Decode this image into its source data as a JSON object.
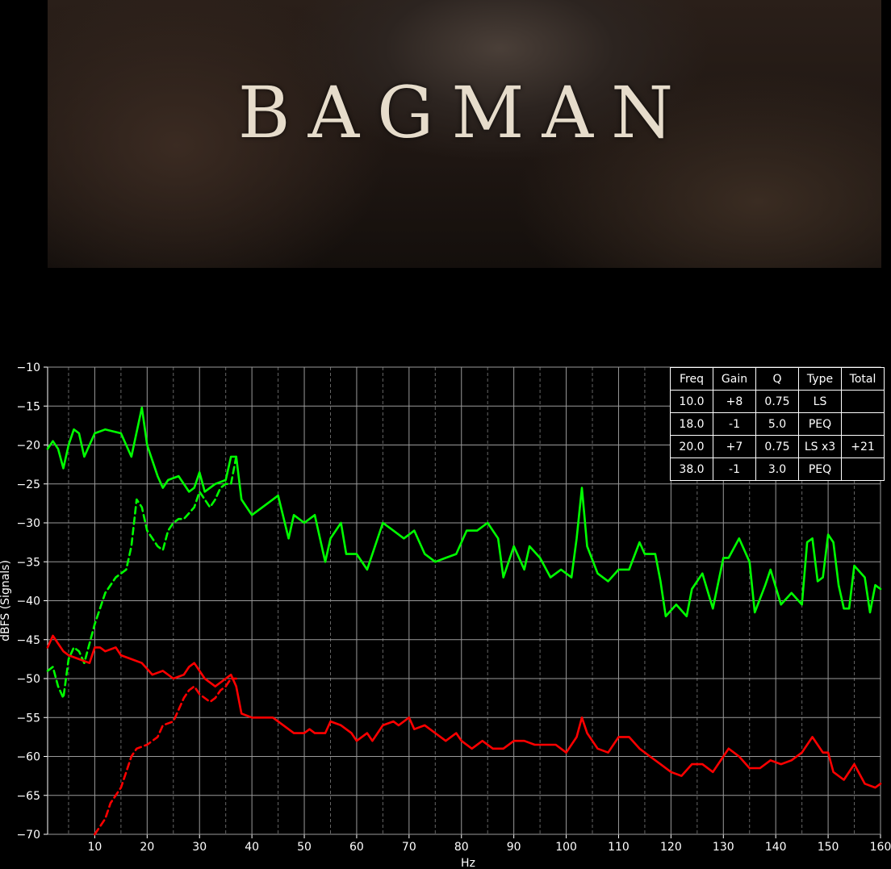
{
  "poster": {
    "title": "BAGMAN"
  },
  "table": {
    "headers": [
      "Freq",
      "Gain",
      "Q",
      "Type",
      "Total"
    ],
    "rows": [
      [
        "10.0",
        "+8",
        "0.75",
        "LS",
        ""
      ],
      [
        "18.0",
        "-1",
        "5.0",
        "PEQ",
        ""
      ],
      [
        "20.0",
        "+7",
        "0.75",
        "LS x3",
        "+21"
      ],
      [
        "38.0",
        "-1",
        "3.0",
        "PEQ",
        ""
      ]
    ]
  },
  "chart_data": {
    "type": "line",
    "xlabel": "Hz",
    "ylabel": "dBFS (Signals)",
    "xlim": [
      1,
      160
    ],
    "ylim": [
      -70,
      -10
    ],
    "xticks": [
      10,
      20,
      30,
      40,
      50,
      60,
      70,
      80,
      90,
      100,
      110,
      120,
      130,
      140,
      150,
      160
    ],
    "yticks": [
      -10,
      -15,
      -20,
      -25,
      -30,
      -35,
      -40,
      -45,
      -50,
      -55,
      -60,
      -65,
      -70
    ],
    "grid": true,
    "series": [
      {
        "color": "#00ff00",
        "style": "solid",
        "points": [
          [
            1,
            -20.5
          ],
          [
            2,
            -19.5
          ],
          [
            3,
            -20.5
          ],
          [
            4,
            -23
          ],
          [
            5,
            -20
          ],
          [
            6,
            -18
          ],
          [
            7,
            -18.5
          ],
          [
            8,
            -21.5
          ],
          [
            9,
            -20
          ],
          [
            10,
            -18.5
          ],
          [
            12,
            -18
          ],
          [
            15,
            -18.5
          ],
          [
            17,
            -21.5
          ],
          [
            19,
            -15.2
          ],
          [
            20,
            -20
          ],
          [
            22,
            -24
          ],
          [
            23,
            -25.5
          ],
          [
            24,
            -24.5
          ],
          [
            26,
            -24
          ],
          [
            28,
            -26
          ],
          [
            29,
            -25.5
          ],
          [
            30,
            -23.5
          ],
          [
            31,
            -26
          ],
          [
            33,
            -25
          ],
          [
            35,
            -24.5
          ],
          [
            36,
            -21.5
          ],
          [
            37,
            -21.5
          ],
          [
            38,
            -27
          ],
          [
            40,
            -29
          ],
          [
            42,
            -28
          ],
          [
            45,
            -26.5
          ],
          [
            47,
            -32
          ],
          [
            48,
            -29
          ],
          [
            50,
            -30
          ],
          [
            52,
            -29
          ],
          [
            54,
            -35
          ],
          [
            55,
            -32
          ],
          [
            57,
            -30
          ],
          [
            58,
            -34
          ],
          [
            60,
            -34
          ],
          [
            62,
            -36
          ],
          [
            65,
            -30
          ],
          [
            67,
            -31
          ],
          [
            69,
            -32
          ],
          [
            71,
            -31
          ],
          [
            73,
            -34
          ],
          [
            75,
            -35
          ],
          [
            77,
            -34.5
          ],
          [
            79,
            -34
          ],
          [
            81,
            -31
          ],
          [
            83,
            -31
          ],
          [
            85,
            -30
          ],
          [
            87,
            -32
          ],
          [
            88,
            -37
          ],
          [
            90,
            -33
          ],
          [
            92,
            -36
          ],
          [
            93,
            -33
          ],
          [
            95,
            -34.5
          ],
          [
            97,
            -37
          ],
          [
            99,
            -36
          ],
          [
            101,
            -37
          ],
          [
            102,
            -32
          ],
          [
            103,
            -25.5
          ],
          [
            104,
            -33
          ],
          [
            106,
            -36.5
          ],
          [
            108,
            -37.5
          ],
          [
            110,
            -36
          ],
          [
            112,
            -36
          ],
          [
            114,
            -32.5
          ],
          [
            115,
            -34
          ],
          [
            117,
            -34
          ],
          [
            118,
            -37.5
          ],
          [
            119,
            -42
          ],
          [
            121,
            -40.5
          ],
          [
            123,
            -42
          ],
          [
            124,
            -38.5
          ],
          [
            126,
            -36.5
          ],
          [
            128,
            -41
          ],
          [
            130,
            -34.5
          ],
          [
            131,
            -34.5
          ],
          [
            133,
            -32
          ],
          [
            135,
            -35
          ],
          [
            136,
            -41.5
          ],
          [
            138,
            -38
          ],
          [
            139,
            -36
          ],
          [
            141,
            -40.5
          ],
          [
            143,
            -39
          ],
          [
            145,
            -40.5
          ],
          [
            146,
            -32.5
          ],
          [
            147,
            -32
          ],
          [
            148,
            -37.5
          ],
          [
            149,
            -37
          ],
          [
            150,
            -31.5
          ],
          [
            151,
            -32.5
          ],
          [
            152,
            -38
          ],
          [
            153,
            -41
          ],
          [
            154,
            -41
          ],
          [
            155,
            -35.5
          ],
          [
            157,
            -37
          ],
          [
            158,
            -41.5
          ],
          [
            159,
            -38
          ],
          [
            160,
            -38.5
          ]
        ]
      },
      {
        "color": "#00ff00",
        "style": "dashed",
        "points": [
          [
            1,
            -49
          ],
          [
            2,
            -48.5
          ],
          [
            3,
            -51
          ],
          [
            4,
            -52.5
          ],
          [
            5,
            -47.5
          ],
          [
            6,
            -46
          ],
          [
            7,
            -46.5
          ],
          [
            8,
            -48
          ],
          [
            10,
            -43
          ],
          [
            12,
            -39
          ],
          [
            14,
            -37
          ],
          [
            16,
            -36
          ],
          [
            17,
            -33
          ],
          [
            18,
            -27
          ],
          [
            19,
            -28
          ],
          [
            20,
            -31
          ],
          [
            22,
            -33
          ],
          [
            23,
            -33.5
          ],
          [
            24,
            -31
          ],
          [
            25,
            -30
          ],
          [
            26,
            -29.5
          ],
          [
            27,
            -29.5
          ],
          [
            29,
            -28
          ],
          [
            30,
            -26
          ],
          [
            31,
            -27
          ],
          [
            32,
            -28
          ],
          [
            33,
            -27
          ],
          [
            34,
            -25.5
          ],
          [
            35,
            -25
          ],
          [
            36,
            -25
          ],
          [
            37,
            -21.5
          ]
        ]
      },
      {
        "color": "#ff0000",
        "style": "solid",
        "points": [
          [
            1,
            -46
          ],
          [
            2,
            -44.5
          ],
          [
            3,
            -45.5
          ],
          [
            4,
            -46.5
          ],
          [
            5,
            -47
          ],
          [
            7,
            -47.5
          ],
          [
            9,
            -48
          ],
          [
            10,
            -46
          ],
          [
            11,
            -46
          ],
          [
            12,
            -46.5
          ],
          [
            14,
            -46
          ],
          [
            15,
            -47
          ],
          [
            17,
            -47.5
          ],
          [
            19,
            -48
          ],
          [
            21,
            -49.5
          ],
          [
            23,
            -49
          ],
          [
            25,
            -50
          ],
          [
            27,
            -49.5
          ],
          [
            28,
            -48.5
          ],
          [
            29,
            -48
          ],
          [
            31,
            -50
          ],
          [
            33,
            -51
          ],
          [
            35,
            -50
          ],
          [
            36,
            -49.5
          ],
          [
            37,
            -51
          ],
          [
            38,
            -54.5
          ],
          [
            40,
            -55
          ],
          [
            42,
            -55
          ],
          [
            44,
            -55
          ],
          [
            46,
            -56
          ],
          [
            48,
            -57
          ],
          [
            50,
            -57
          ],
          [
            51,
            -56.5
          ],
          [
            52,
            -57
          ],
          [
            54,
            -57
          ],
          [
            55,
            -55.5
          ],
          [
            57,
            -56
          ],
          [
            59,
            -57
          ],
          [
            60,
            -58
          ],
          [
            62,
            -57
          ],
          [
            63,
            -58
          ],
          [
            65,
            -56
          ],
          [
            67,
            -55.5
          ],
          [
            68,
            -56
          ],
          [
            70,
            -55
          ],
          [
            71,
            -56.5
          ],
          [
            73,
            -56
          ],
          [
            75,
            -57
          ],
          [
            77,
            -58
          ],
          [
            79,
            -57
          ],
          [
            80,
            -58
          ],
          [
            82,
            -59
          ],
          [
            84,
            -58
          ],
          [
            86,
            -59
          ],
          [
            88,
            -59
          ],
          [
            90,
            -58
          ],
          [
            92,
            -58
          ],
          [
            94,
            -58.5
          ],
          [
            96,
            -58.5
          ],
          [
            98,
            -58.5
          ],
          [
            100,
            -59.5
          ],
          [
            102,
            -57.5
          ],
          [
            103,
            -55
          ],
          [
            104,
            -57
          ],
          [
            106,
            -59
          ],
          [
            108,
            -59.5
          ],
          [
            110,
            -57.5
          ],
          [
            112,
            -57.5
          ],
          [
            114,
            -59
          ],
          [
            116,
            -60
          ],
          [
            118,
            -61
          ],
          [
            120,
            -62
          ],
          [
            122,
            -62.5
          ],
          [
            124,
            -61
          ],
          [
            126,
            -61
          ],
          [
            128,
            -62
          ],
          [
            130,
            -60
          ],
          [
            131,
            -59
          ],
          [
            133,
            -60
          ],
          [
            135,
            -61.5
          ],
          [
            137,
            -61.5
          ],
          [
            139,
            -60.5
          ],
          [
            141,
            -61
          ],
          [
            143,
            -60.5
          ],
          [
            145,
            -59.5
          ],
          [
            147,
            -57.5
          ],
          [
            149,
            -59.5
          ],
          [
            150,
            -59.5
          ],
          [
            151,
            -62
          ],
          [
            153,
            -63
          ],
          [
            155,
            -61
          ],
          [
            157,
            -63.5
          ],
          [
            159,
            -64
          ],
          [
            160,
            -63.5
          ]
        ]
      },
      {
        "color": "#ff0000",
        "style": "dashed",
        "points": [
          [
            10,
            -70
          ],
          [
            12,
            -68
          ],
          [
            13,
            -66
          ],
          [
            15,
            -64
          ],
          [
            16,
            -62
          ],
          [
            17,
            -60
          ],
          [
            18,
            -59
          ],
          [
            20,
            -58.5
          ],
          [
            22,
            -57.5
          ],
          [
            23,
            -56
          ],
          [
            25,
            -55.5
          ],
          [
            26,
            -54
          ],
          [
            27,
            -52.5
          ],
          [
            28,
            -51.5
          ],
          [
            29,
            -51
          ],
          [
            30,
            -52
          ],
          [
            32,
            -53
          ],
          [
            33,
            -52.5
          ],
          [
            34,
            -51.5
          ],
          [
            35,
            -51
          ],
          [
            36,
            -50
          ],
          [
            37,
            -50
          ]
        ]
      }
    ]
  }
}
